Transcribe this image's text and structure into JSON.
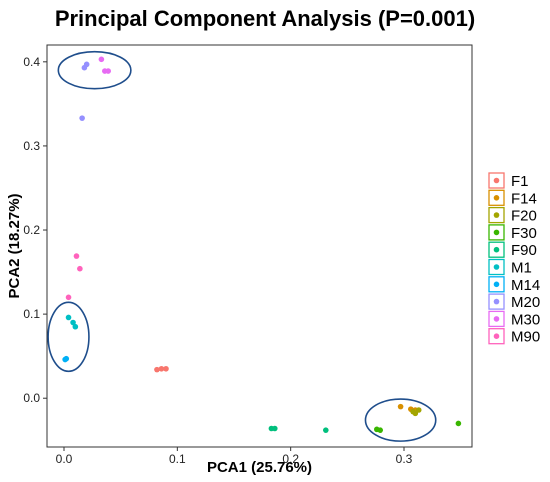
{
  "chart_data": {
    "type": "scatter",
    "title": "Principal Component Analysis (P=0.001)",
    "xlabel": "PCA1 (25.76%)",
    "ylabel": "PCA2 (18.27%)",
    "xlim": [
      -0.015,
      0.36
    ],
    "ylim": [
      -0.058,
      0.42
    ],
    "xticks": [
      {
        "value": 0.0,
        "label": "0.0"
      },
      {
        "value": 0.1,
        "label": "0.1"
      },
      {
        "value": 0.2,
        "label": "0.2"
      },
      {
        "value": 0.3,
        "label": "0.3"
      }
    ],
    "yticks": [
      {
        "value": 0.0,
        "label": "0.0"
      },
      {
        "value": 0.1,
        "label": "0.1"
      },
      {
        "value": 0.2,
        "label": "0.2"
      },
      {
        "value": 0.3,
        "label": "0.3"
      },
      {
        "value": 0.4,
        "label": "0.4"
      }
    ],
    "grid": false,
    "legend_position": "right",
    "series": [
      {
        "name": "F1",
        "color": "#F8766D",
        "points": [
          [
            0.082,
            0.034
          ],
          [
            0.086,
            0.035
          ],
          [
            0.09,
            0.035
          ]
        ]
      },
      {
        "name": "F14",
        "color": "#D89000",
        "points": [
          [
            0.297,
            -0.01
          ],
          [
            0.306,
            -0.013
          ],
          [
            0.31,
            -0.014
          ]
        ]
      },
      {
        "name": "F20",
        "color": "#A3A500",
        "points": [
          [
            0.308,
            -0.016
          ],
          [
            0.31,
            -0.018
          ],
          [
            0.313,
            -0.014
          ]
        ]
      },
      {
        "name": "F30",
        "color": "#39B600",
        "points": [
          [
            0.276,
            -0.037
          ],
          [
            0.279,
            -0.038
          ],
          [
            0.348,
            -0.03
          ]
        ]
      },
      {
        "name": "F90",
        "color": "#00BF7D",
        "points": [
          [
            0.183,
            -0.036
          ],
          [
            0.186,
            -0.036
          ],
          [
            0.231,
            -0.038
          ]
        ]
      },
      {
        "name": "M1",
        "color": "#00BFC4",
        "points": [
          [
            0.008,
            0.09
          ],
          [
            0.01,
            0.085
          ],
          [
            0.004,
            0.096
          ]
        ]
      },
      {
        "name": "M14",
        "color": "#00B0F6",
        "points": [
          [
            0.001,
            0.046
          ],
          [
            0.002,
            0.047
          ]
        ]
      },
      {
        "name": "M20",
        "color": "#9590FF",
        "points": [
          [
            0.018,
            0.393
          ],
          [
            0.02,
            0.397
          ],
          [
            0.016,
            0.333
          ]
        ]
      },
      {
        "name": "M30",
        "color": "#E76BF3",
        "points": [
          [
            0.033,
            0.403
          ],
          [
            0.036,
            0.389
          ],
          [
            0.039,
            0.389
          ]
        ]
      },
      {
        "name": "M90",
        "color": "#FF62BC",
        "points": [
          [
            0.011,
            0.169
          ],
          [
            0.014,
            0.154
          ],
          [
            0.004,
            0.12
          ]
        ]
      }
    ],
    "ellipses": [
      {
        "cx": 0.027,
        "cy": 0.39,
        "rx": 0.032,
        "ry": 0.022,
        "color": "#1F4E8C"
      },
      {
        "cx": 0.004,
        "cy": 0.073,
        "rx": 0.018,
        "ry": 0.041,
        "color": "#1F4E8C"
      },
      {
        "cx": 0.297,
        "cy": -0.026,
        "rx": 0.031,
        "ry": 0.025,
        "color": "#1F4E8C"
      }
    ]
  }
}
